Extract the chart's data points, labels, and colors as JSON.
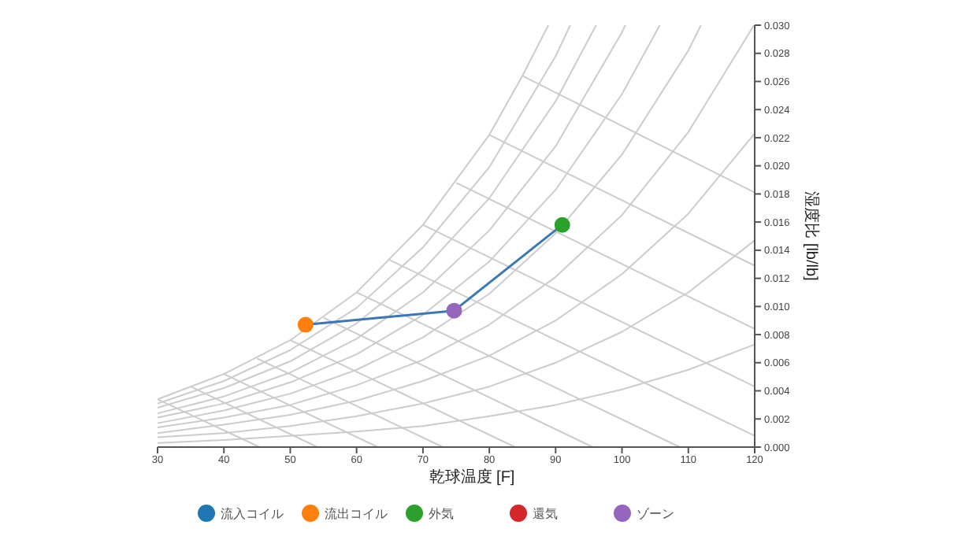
{
  "chart_data": {
    "type": "line",
    "xlabel": "乾球温度 [F]",
    "ylabel": "湿度比 [lb/lb]",
    "xlim": [
      30,
      120
    ],
    "ylim": [
      0,
      0.03
    ],
    "legend": "bottom",
    "xticks": [
      30,
      40,
      50,
      60,
      70,
      80,
      90,
      100,
      110,
      120
    ],
    "yticks": [
      {
        "value": 0,
        "label": "0.000"
      },
      {
        "value": 0.002,
        "label": "0.002"
      },
      {
        "value": 0.004,
        "label": "0.004"
      },
      {
        "value": 0.006,
        "label": "0.006"
      },
      {
        "value": 0.008,
        "label": "0.008"
      },
      {
        "value": 0.01,
        "label": "0.010"
      },
      {
        "value": 0.012,
        "label": "0.012"
      },
      {
        "value": 0.014,
        "label": "0.014"
      },
      {
        "value": 0.016,
        "label": "0.016"
      },
      {
        "value": 0.018,
        "label": "0.018"
      },
      {
        "value": 0.02,
        "label": "0.020"
      },
      {
        "value": 0.022,
        "label": "0.022"
      },
      {
        "value": 0.024,
        "label": "0.024"
      },
      {
        "value": 0.026,
        "label": "0.026"
      },
      {
        "value": 0.028,
        "label": "0.028"
      },
      {
        "value": 0.03,
        "label": "0.030"
      }
    ],
    "series": [
      {
        "color": "#cccccc",
        "x": [
          30,
          40,
          50,
          60,
          70,
          80,
          85,
          88.9
        ],
        "values": [
          0.0034,
          0.0052,
          0.0076,
          0.011,
          0.0158,
          0.0222,
          0.0264,
          0.03
        ]
      },
      {
        "color": "#cccccc",
        "x": [
          30,
          40,
          50,
          60,
          70,
          80,
          90,
          92.2
        ],
        "values": [
          0.0031,
          0.0047,
          0.0069,
          0.0099,
          0.0142,
          0.0199,
          0.0278,
          0.03
        ]
      },
      {
        "color": "#cccccc",
        "x": [
          30,
          40,
          50,
          60,
          70,
          80,
          90,
          96.1
        ],
        "values": [
          0.0028,
          0.0042,
          0.0061,
          0.0088,
          0.0126,
          0.0177,
          0.0246,
          0.03
        ]
      },
      {
        "color": "#cccccc",
        "x": [
          30,
          40,
          50,
          60,
          70,
          80,
          90,
          100,
          100.5
        ],
        "values": [
          0.0024,
          0.0036,
          0.0053,
          0.0077,
          0.011,
          0.0154,
          0.0214,
          0.0295,
          0.03
        ]
      },
      {
        "color": "#cccccc",
        "x": [
          30,
          40,
          50,
          60,
          70,
          80,
          90,
          100,
          105.7
        ],
        "values": [
          0.0021,
          0.0031,
          0.0046,
          0.0066,
          0.0094,
          0.0132,
          0.0183,
          0.0251,
          0.03
        ]
      },
      {
        "color": "#cccccc",
        "x": [
          30,
          40,
          50,
          60,
          70,
          80,
          90,
          100,
          110,
          111.9
        ],
        "values": [
          0.0017,
          0.0026,
          0.0038,
          0.0055,
          0.0078,
          0.0109,
          0.0152,
          0.0208,
          0.0282,
          0.03
        ]
      },
      {
        "color": "#cccccc",
        "x": [
          30,
          40,
          50,
          60,
          70,
          80,
          90,
          100,
          110,
          119.9
        ],
        "values": [
          0.0014,
          0.0021,
          0.003,
          0.0044,
          0.0062,
          0.0087,
          0.0121,
          0.0165,
          0.0224,
          0.03
        ]
      },
      {
        "color": "#cccccc",
        "x": [
          30,
          40,
          50,
          60,
          70,
          80,
          90,
          100,
          110,
          120
        ],
        "values": [
          0.001,
          0.0016,
          0.0023,
          0.0033,
          0.0047,
          0.0065,
          0.009,
          0.0123,
          0.0166,
          0.0223
        ]
      },
      {
        "color": "#cccccc",
        "x": [
          30,
          40,
          50,
          60,
          70,
          80,
          90,
          100,
          110,
          120
        ],
        "values": [
          0.0007,
          0.001,
          0.0015,
          0.0022,
          0.0031,
          0.0043,
          0.006,
          0.0082,
          0.011,
          0.0147
        ]
      },
      {
        "color": "#cccccc",
        "x": [
          30,
          40,
          50,
          60,
          70,
          80,
          90,
          100,
          110,
          120
        ],
        "values": [
          0.0003,
          0.0005,
          0.0008,
          0.0011,
          0.0015,
          0.0022,
          0.003,
          0.0041,
          0.0055,
          0.0073
        ]
      },
      {
        "color": "#cccccc",
        "x": [
          30,
          45.4
        ],
        "values": [
          0.0034,
          0
        ]
      },
      {
        "color": "#cccccc",
        "x": [
          35,
          54.1
        ],
        "values": [
          0.0043,
          0
        ]
      },
      {
        "color": "#cccccc",
        "x": [
          40,
          63.2
        ],
        "values": [
          0.0052,
          0
        ]
      },
      {
        "color": "#cccccc",
        "x": [
          45,
          73
        ],
        "values": [
          0.0063,
          0
        ]
      },
      {
        "color": "#cccccc",
        "x": [
          50,
          83.9
        ],
        "values": [
          0.0076,
          0
        ]
      },
      {
        "color": "#cccccc",
        "x": [
          55,
          95.6
        ],
        "values": [
          0.0092,
          0
        ]
      },
      {
        "color": "#cccccc",
        "x": [
          60,
          108.7
        ],
        "values": [
          0.011,
          0
        ]
      },
      {
        "color": "#cccccc",
        "x": [
          65,
          120
        ],
        "values": [
          0.0133,
          0.0008
        ]
      },
      {
        "color": "#cccccc",
        "x": [
          70,
          120
        ],
        "values": [
          0.0158,
          0.0043
        ]
      },
      {
        "color": "#cccccc",
        "x": [
          75,
          120
        ],
        "values": [
          0.0188,
          0.0084
        ]
      },
      {
        "color": "#cccccc",
        "x": [
          80,
          120
        ],
        "values": [
          0.0222,
          0.0129
        ]
      },
      {
        "color": "#cccccc",
        "x": [
          85,
          120
        ],
        "values": [
          0.0264,
          0.0181
        ]
      },
      {
        "color": "#3a78b5",
        "x": [
          52.3,
          74.7,
          91.0
        ],
        "values": [
          0.0087,
          0.0097,
          0.0158
        ]
      },
      {
        "type": "scatter",
        "marker": "circle",
        "name": "流入コイル",
        "color": "#1f77b4",
        "values": [
          null
        ]
      },
      {
        "type": "scatter",
        "marker": "circle",
        "name": "流出コイル",
        "color": "#ff7f0e",
        "x": [
          52.3
        ],
        "values": [
          0.0087
        ]
      },
      {
        "type": "scatter",
        "marker": "circle",
        "name": "外気",
        "color": "#2ca02c",
        "x": [
          91.0
        ],
        "values": [
          0.0158
        ]
      },
      {
        "type": "scatter",
        "marker": "circle",
        "name": "還気",
        "color": "#d62728",
        "values": [
          null
        ]
      },
      {
        "type": "scatter",
        "marker": "circle",
        "name": "ゾーン",
        "color": "#9467bd",
        "x": [
          74.7
        ],
        "values": [
          0.0097
        ]
      }
    ]
  }
}
